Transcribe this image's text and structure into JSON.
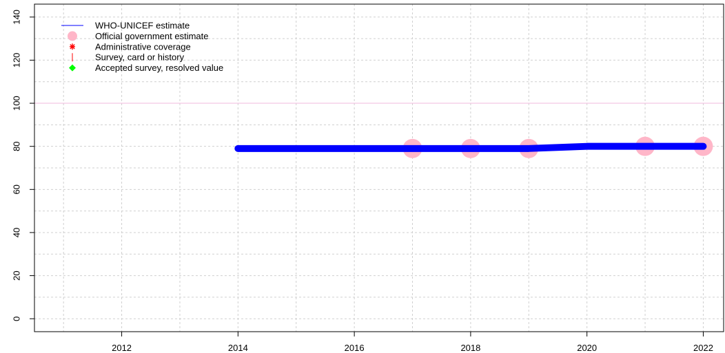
{
  "chart_data": {
    "type": "line",
    "title": "",
    "xlabel": "",
    "ylabel": "",
    "xlim": [
      2010.5,
      2022.35
    ],
    "ylim": [
      -6,
      146
    ],
    "x_ticks": [
      2012,
      2014,
      2016,
      2018,
      2020,
      2022
    ],
    "y_ticks": [
      0,
      20,
      40,
      60,
      80,
      100,
      120,
      140
    ],
    "grid": true,
    "reference_line": {
      "y": 100,
      "color": "#f0b8dc"
    },
    "legend": {
      "position": "top-left",
      "entries": [
        {
          "name": "WHO-UNICEF estimate",
          "marker": "line",
          "color": "#0000ff"
        },
        {
          "name": "Official government estimate",
          "marker": "circle",
          "color": "#ffb6c8"
        },
        {
          "name": "Administrative coverage",
          "marker": "asterisk",
          "color": "#ff0000"
        },
        {
          "name": "Survey, card or history",
          "marker": "vbar",
          "color": "#ff0000"
        },
        {
          "name": "Accepted survey, resolved value",
          "marker": "diamond",
          "color": "#00ff00"
        }
      ]
    },
    "series": [
      {
        "name": "WHO-UNICEF estimate",
        "color": "#0000ff",
        "x": [
          2014,
          2015,
          2016,
          2017,
          2018,
          2019,
          2020,
          2021,
          2022
        ],
        "y": [
          79,
          79,
          79,
          79,
          79,
          79,
          80,
          80,
          80
        ]
      },
      {
        "name": "Official government estimate",
        "color": "#ffb6c8",
        "x": [
          2017,
          2018,
          2019,
          2021,
          2022
        ],
        "y": [
          79,
          79,
          79,
          80,
          80
        ]
      }
    ]
  }
}
